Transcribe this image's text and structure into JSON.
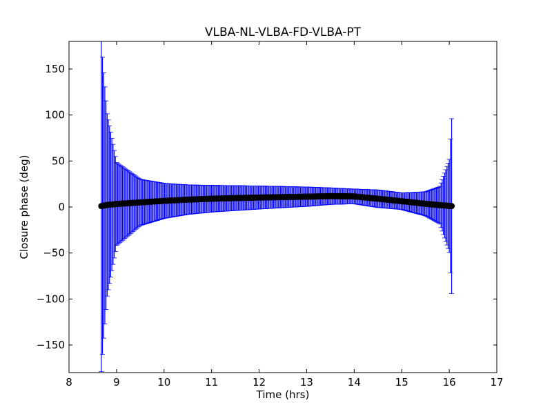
{
  "chart_data": {
    "type": "scatter",
    "title": "VLBA-NL-VLBA-FD-VLBA-PT",
    "xlabel": "Time (hrs)",
    "ylabel": "Closure phase (deg)",
    "xlim": [
      8,
      17
    ],
    "ylim": [
      -180,
      180
    ],
    "xticks": [
      8,
      9,
      10,
      11,
      12,
      13,
      14,
      15,
      16,
      17
    ],
    "yticks": [
      -150,
      -100,
      -50,
      0,
      50,
      100,
      150
    ],
    "ytick_labels": [
      "−150",
      "−100",
      "−50",
      "0",
      "50",
      "100",
      "150"
    ],
    "grid": false,
    "marker_color": "#000000",
    "errorbar_color": "#0000ff",
    "series": [
      {
        "x": [
          8.68,
          8.72,
          8.8,
          9.0,
          9.5,
          10.0,
          10.5,
          11.0,
          11.5,
          12.0,
          12.5,
          13.0,
          13.5,
          14.0,
          14.5,
          15.0,
          15.5,
          15.8,
          16.0,
          16.05
        ],
        "y": [
          1.0,
          1.5,
          2.2,
          3.3,
          5.0,
          6.7,
          8.0,
          9.0,
          9.7,
          10.3,
          10.8,
          11.2,
          11.8,
          11.5,
          9.0,
          6.3,
          3.5,
          2.0,
          1.2,
          1.0
        ],
        "err": [
          180,
          150,
          100,
          45,
          25,
          19,
          16,
          14.5,
          13.5,
          12.5,
          11.5,
          10.5,
          9.0,
          8.0,
          9.5,
          9.0,
          13,
          20,
          50,
          95
        ]
      }
    ]
  }
}
